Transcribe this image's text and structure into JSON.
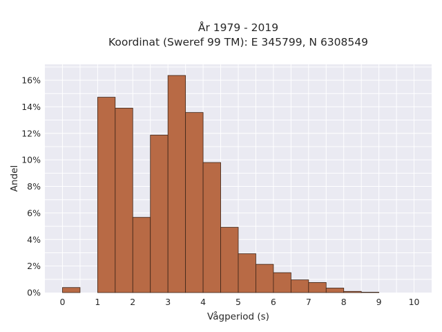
{
  "chart_data": {
    "type": "bar",
    "title": "År 1979 - 2019",
    "subtitle": "Koordinat (Sweref 99 TM): E 345799, N 6308549",
    "xlabel": "Vågperiod (s)",
    "ylabel": "Andel",
    "bin_width": 0.5,
    "bins": [
      {
        "x0": 0.0,
        "x1": 0.5,
        "value": 0.0038
      },
      {
        "x0": 1.0,
        "x1": 1.5,
        "value": 0.1472
      },
      {
        "x0": 1.5,
        "x1": 2.0,
        "value": 0.139
      },
      {
        "x0": 2.0,
        "x1": 2.5,
        "value": 0.0567
      },
      {
        "x0": 2.5,
        "x1": 3.0,
        "value": 0.1187
      },
      {
        "x0": 3.0,
        "x1": 3.5,
        "value": 0.1636
      },
      {
        "x0": 3.5,
        "x1": 4.0,
        "value": 0.1357
      },
      {
        "x0": 4.0,
        "x1": 4.5,
        "value": 0.098
      },
      {
        "x0": 4.5,
        "x1": 5.0,
        "value": 0.0492
      },
      {
        "x0": 5.0,
        "x1": 5.5,
        "value": 0.0293
      },
      {
        "x0": 5.5,
        "x1": 6.0,
        "value": 0.0213
      },
      {
        "x0": 6.0,
        "x1": 6.5,
        "value": 0.015
      },
      {
        "x0": 6.5,
        "x1": 7.0,
        "value": 0.0096
      },
      {
        "x0": 7.0,
        "x1": 7.5,
        "value": 0.0076
      },
      {
        "x0": 7.5,
        "x1": 8.0,
        "value": 0.0034
      },
      {
        "x0": 8.0,
        "x1": 8.5,
        "value": 0.0009
      },
      {
        "x0": 8.5,
        "x1": 9.0,
        "value": 0.0003
      }
    ],
    "xlim": [
      -0.5,
      10.5
    ],
    "ylim": [
      0,
      0.172
    ],
    "xticks": [
      0,
      1,
      2,
      3,
      4,
      5,
      6,
      7,
      8,
      9,
      10
    ],
    "xtick_labels": [
      "0",
      "1",
      "2",
      "3",
      "4",
      "5",
      "6",
      "7",
      "8",
      "9",
      "10"
    ],
    "yticks": [
      0,
      0.02,
      0.04,
      0.06,
      0.08,
      0.1,
      0.12,
      0.14,
      0.16
    ],
    "ytick_labels": [
      "0%",
      "2%",
      "4%",
      "6%",
      "8%",
      "10%",
      "12%",
      "14%",
      "16%"
    ],
    "grid": true,
    "colors": {
      "bar_fill": "#b86a45",
      "bar_edge": "#3b2418",
      "plot_background": "#eaeaf2",
      "grid": "#ffffff",
      "text": "#262626"
    }
  }
}
